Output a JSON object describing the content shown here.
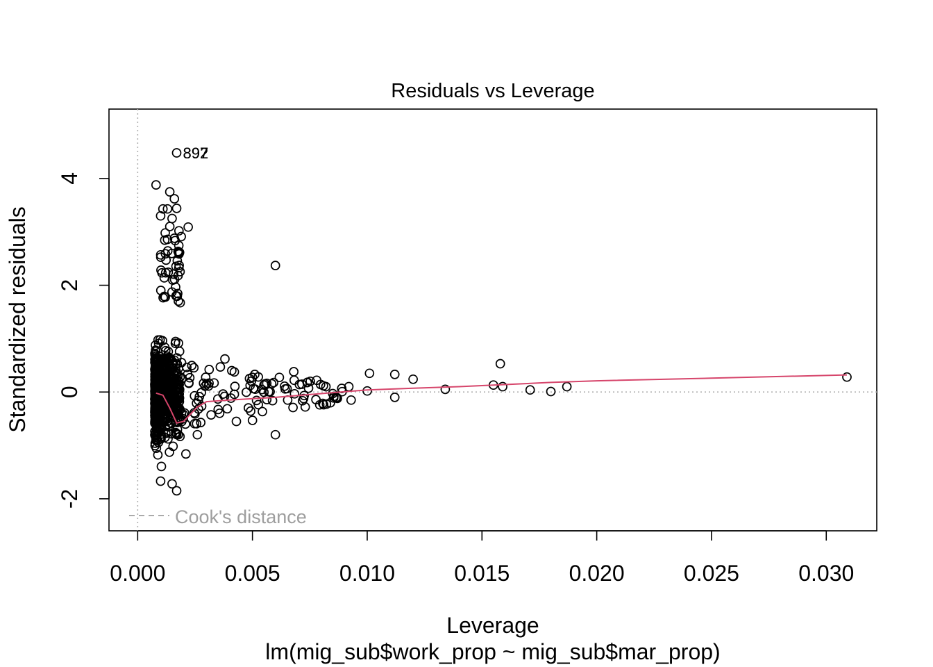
{
  "chart_data": {
    "type": "scatter",
    "title": "Residuals vs Leverage",
    "xlabel": "Leverage",
    "ylabel": "Standardized residuals",
    "subtitle": "lm(mig_sub$work_prop ~ mig_sub$mar_prop)",
    "xlim": [
      -0.00125,
      0.0322
    ],
    "ylim": [
      -2.6,
      5.3
    ],
    "x_ticks": [
      0.0,
      0.005,
      0.01,
      0.015,
      0.02,
      0.025,
      0.03
    ],
    "x_tick_labels": [
      "0.000",
      "0.005",
      "0.010",
      "0.015",
      "0.020",
      "0.025",
      "0.030"
    ],
    "y_ticks": [
      -2,
      0,
      2,
      4
    ],
    "y_tick_labels": [
      "-2",
      "0",
      "2",
      "4"
    ],
    "grid": false,
    "reference_lines": {
      "horizontal_y": 0,
      "vertical_x": 0,
      "style": "dotted",
      "color": "#b0b0b0"
    },
    "legend": {
      "position": "bottom-left",
      "entries": [
        "Cook's distance"
      ],
      "line_style": "dashed",
      "color": "#9e9e9e"
    },
    "labeled_points": [
      {
        "label": "897",
        "x": 0.0017,
        "y": 4.48
      },
      {
        "label": "892",
        "x": 0.0017,
        "y": 4.48
      }
    ],
    "outlying_points": [
      [
        0.0017,
        4.48
      ],
      [
        0.0008,
        3.88
      ],
      [
        0.0014,
        3.75
      ],
      [
        0.0016,
        3.62
      ],
      [
        0.0017,
        3.44
      ],
      [
        0.0011,
        3.43
      ],
      [
        0.0013,
        3.43
      ],
      [
        0.001,
        3.3
      ],
      [
        0.0015,
        3.25
      ],
      [
        0.0022,
        3.09
      ],
      [
        0.0014,
        3.1
      ],
      [
        0.0018,
        3.02
      ],
      [
        0.0012,
        2.98
      ],
      [
        0.0013,
        2.86
      ],
      [
        0.0016,
        2.88
      ],
      [
        0.006,
        2.37
      ],
      [
        0.0158,
        0.53
      ],
      [
        0.0101,
        0.35
      ],
      [
        0.0112,
        0.33
      ],
      [
        0.012,
        0.24
      ],
      [
        0.0068,
        0.38
      ],
      [
        0.0038,
        0.62
      ],
      [
        0.0051,
        0.33
      ],
      [
        0.0064,
        0.11
      ],
      [
        0.006,
        -0.8
      ],
      [
        0.005,
        -0.53
      ],
      [
        0.0043,
        -0.55
      ],
      [
        0.0155,
        0.13
      ],
      [
        0.0159,
        0.1
      ],
      [
        0.0171,
        0.04
      ],
      [
        0.018,
        0.01
      ],
      [
        0.0187,
        0.1
      ],
      [
        0.0309,
        0.28
      ],
      [
        0.0134,
        0.05
      ],
      [
        0.0092,
        0.1
      ],
      [
        0.01,
        0.02
      ],
      [
        0.0112,
        -0.1
      ],
      [
        0.0087,
        -0.12
      ],
      [
        0.0093,
        -0.15
      ],
      [
        0.0073,
        -0.28
      ],
      [
        0.0055,
        0.13
      ],
      [
        0.0041,
        0.4
      ],
      [
        0.0036,
        0.47
      ],
      [
        0.0017,
        -1.85
      ],
      [
        0.0015,
        -1.72
      ],
      [
        0.001,
        -1.67
      ],
      [
        0.0021,
        -1.16
      ],
      [
        0.0026,
        -0.8
      ],
      [
        0.0078,
        0.22
      ],
      [
        0.0082,
        0.1
      ]
    ],
    "smoother": {
      "color": "#d6456b",
      "x": [
        0.0008,
        0.0011,
        0.0014,
        0.0017,
        0.002,
        0.0026,
        0.003,
        0.004,
        0.006,
        0.008,
        0.01,
        0.012,
        0.014,
        0.016,
        0.018,
        0.02,
        0.025,
        0.0309
      ],
      "y": [
        -0.02,
        -0.06,
        -0.3,
        -0.58,
        -0.55,
        -0.28,
        -0.18,
        -0.15,
        -0.1,
        -0.03,
        0.04,
        0.07,
        0.1,
        0.14,
        0.18,
        0.21,
        0.26,
        0.32
      ]
    }
  }
}
